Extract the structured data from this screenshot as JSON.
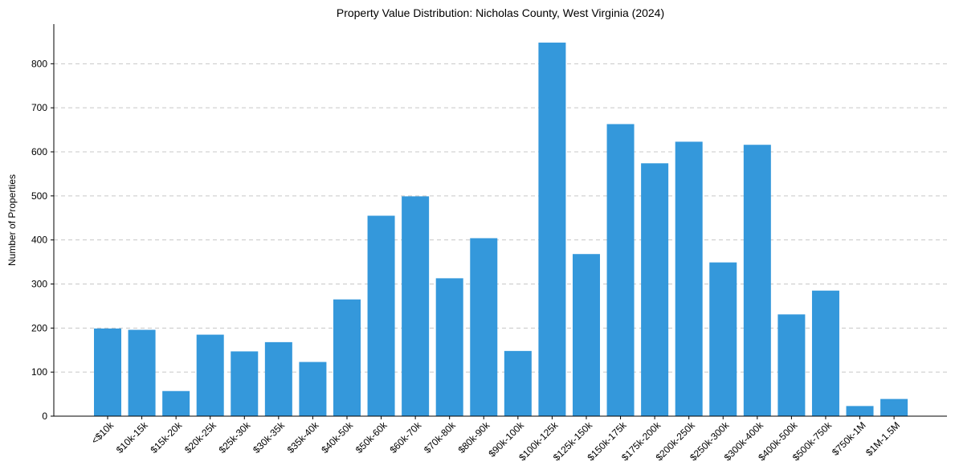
{
  "chart_data": {
    "type": "bar",
    "title": "Property Value Distribution: Nicholas County, West Virginia (2024)",
    "xlabel": "",
    "ylabel": "Number of Properties",
    "ylim": [
      0,
      890
    ],
    "yticks": [
      0,
      100,
      200,
      300,
      400,
      500,
      600,
      700,
      800
    ],
    "grid": "y-dashed",
    "bar_color": "#3498db",
    "categories": [
      "<$10k",
      "$10k-15k",
      "$15k-20k",
      "$20k-25k",
      "$25k-30k",
      "$30k-35k",
      "$35k-40k",
      "$40k-50k",
      "$50k-60k",
      "$60k-70k",
      "$70k-80k",
      "$80k-90k",
      "$90k-100k",
      "$100k-125k",
      "$125k-150k",
      "$150k-175k",
      "$175k-200k",
      "$200k-250k",
      "$250k-300k",
      "$300k-400k",
      "$400k-500k",
      "$500k-750k",
      "$750k-1M",
      "$1M-1.5M"
    ],
    "values": [
      199,
      196,
      57,
      185,
      147,
      168,
      123,
      265,
      455,
      499,
      313,
      404,
      148,
      848,
      368,
      663,
      574,
      623,
      349,
      616,
      231,
      285,
      23,
      39
    ]
  }
}
